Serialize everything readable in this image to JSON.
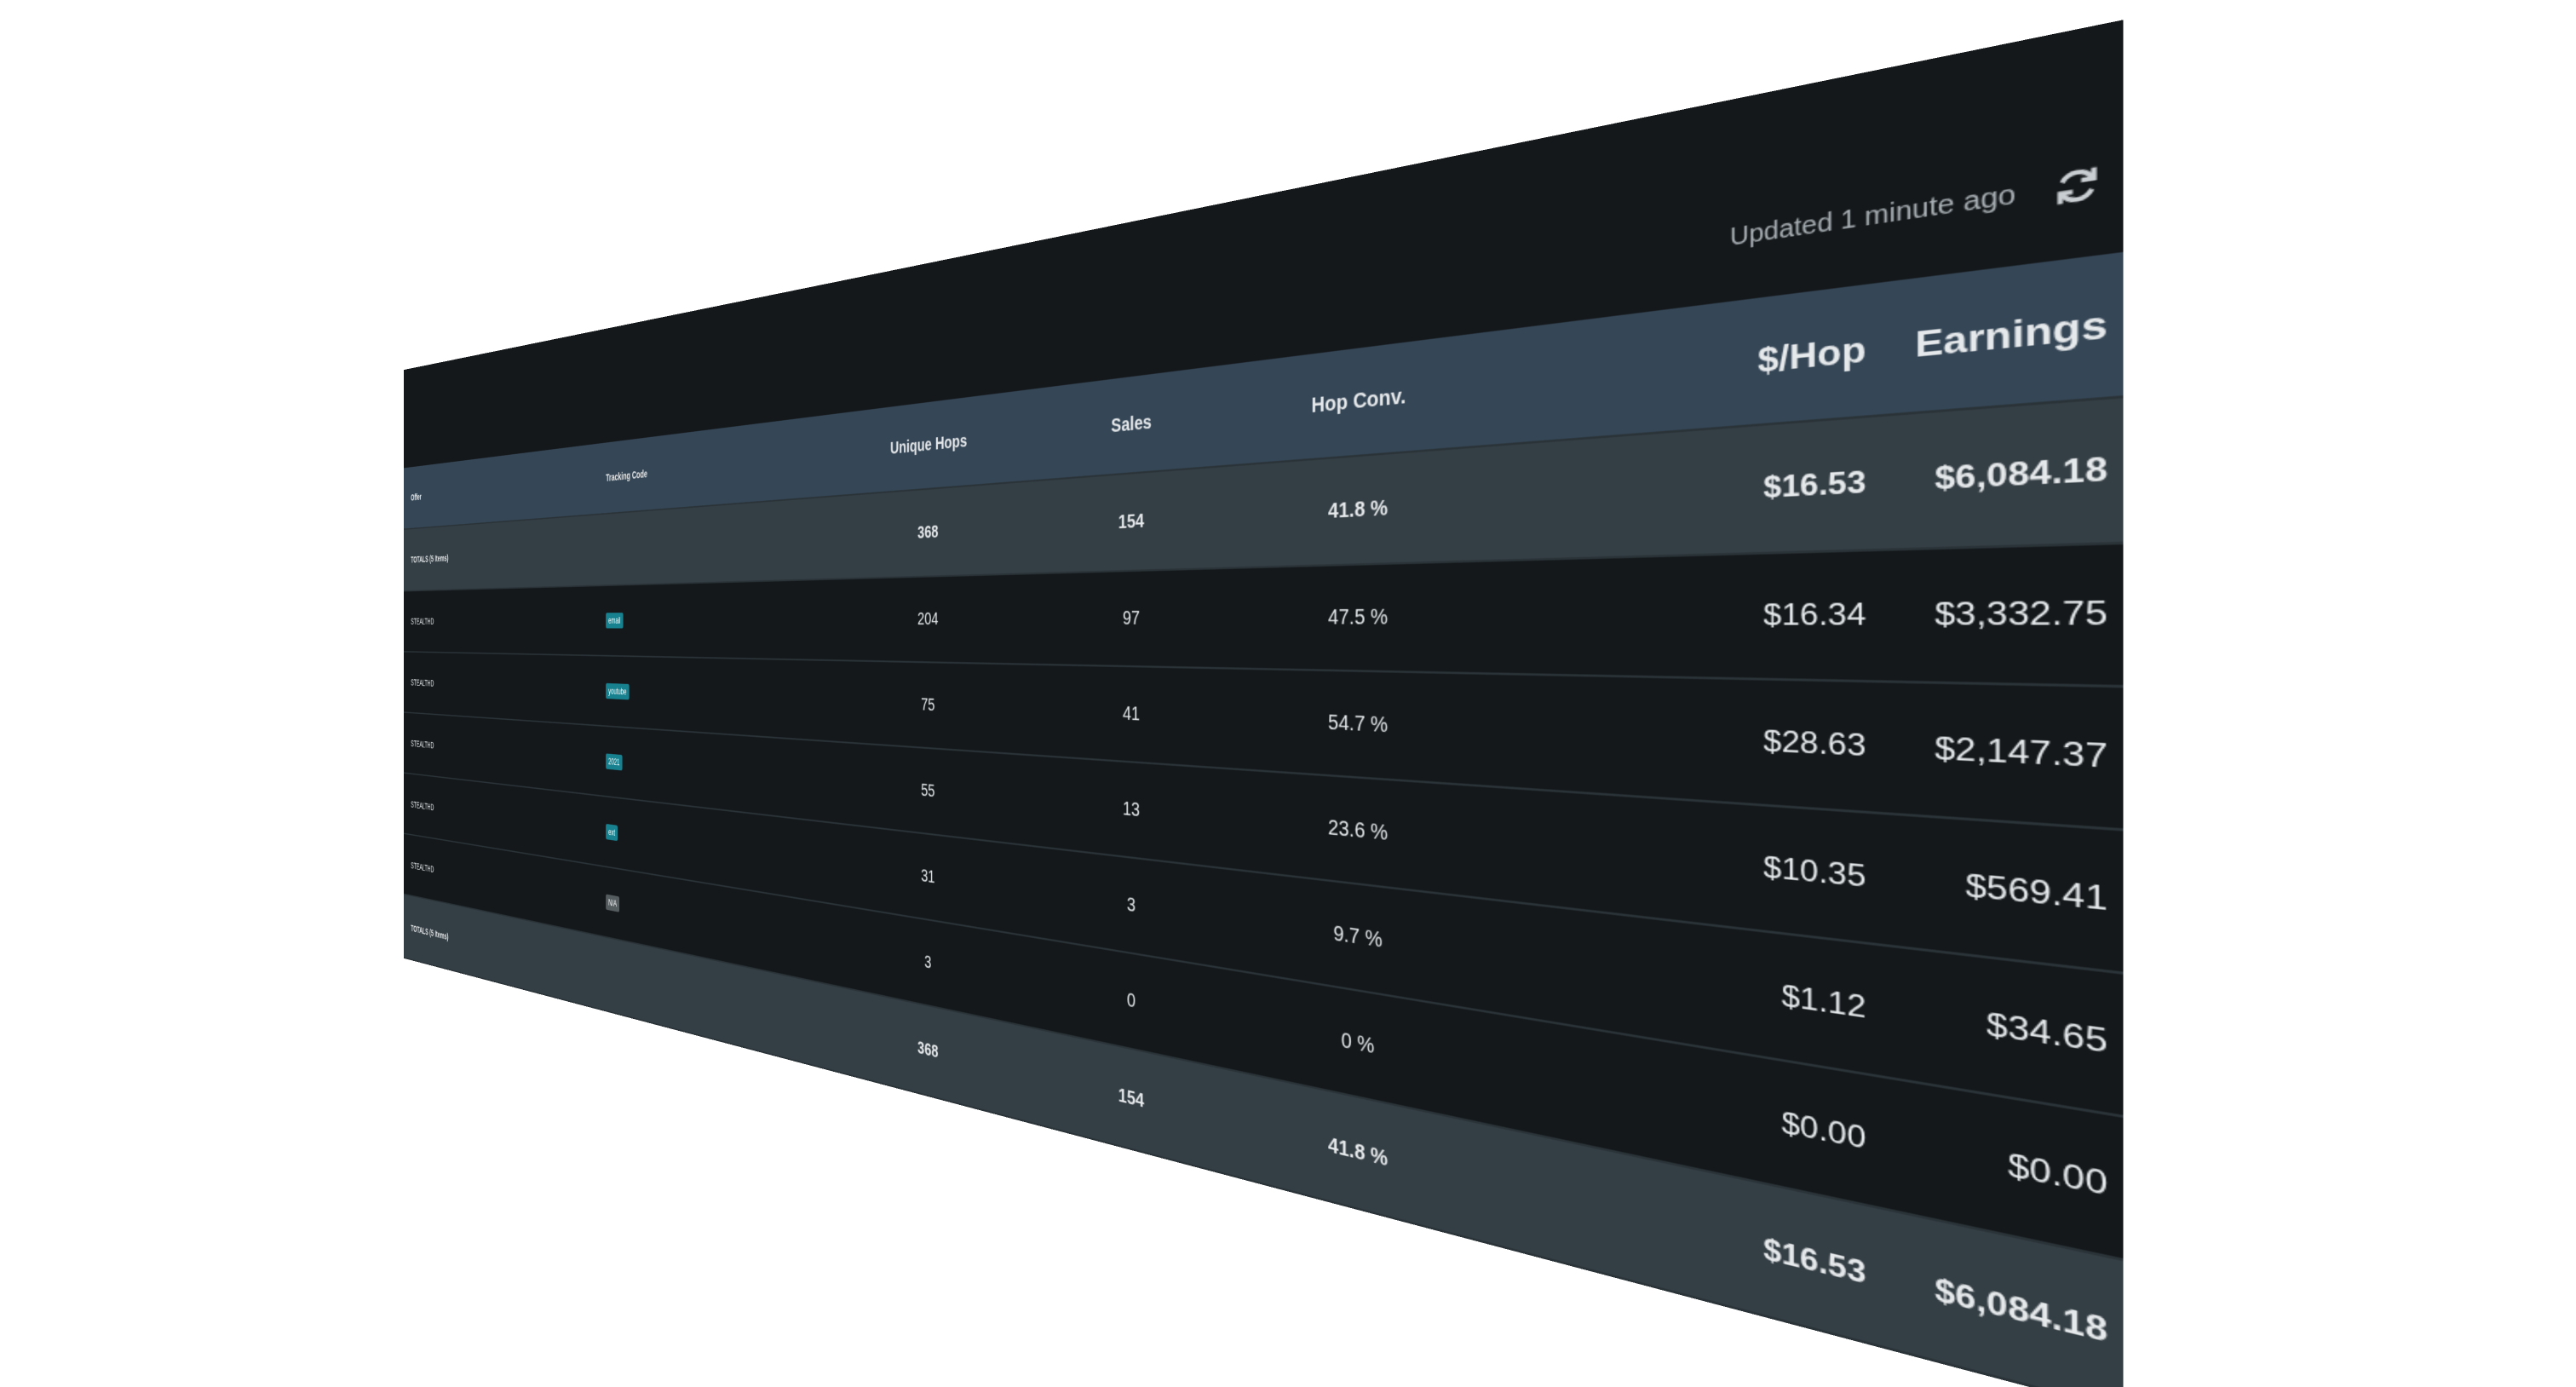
{
  "updated": "Updated 1 minute ago",
  "table": {
    "headers": {
      "offer": "Offer",
      "tracking_code": "Tracking Code",
      "unique_hops": "Unique Hops",
      "sales": "Sales",
      "hop_conv": "Hop Conv.",
      "per_hop": "$/Hop",
      "earnings": "Earnings"
    },
    "totals_top": {
      "offer": "TOTALS (5 Items)",
      "unique_hops": "368",
      "sales": "154",
      "hop_conv": "41.8 %",
      "per_hop": "$16.53",
      "earnings": "$6,084.18"
    },
    "rows": [
      {
        "offer": "STEALTHD",
        "tracking_code": "email",
        "unique_hops": "204",
        "sales": "97",
        "hop_conv": "47.5 %",
        "per_hop": "$16.34",
        "earnings": "$3,332.75"
      },
      {
        "offer": "STEALTHD",
        "tracking_code": "youtube",
        "unique_hops": "75",
        "sales": "41",
        "hop_conv": "54.7 %",
        "per_hop": "$28.63",
        "earnings": "$2,147.37"
      },
      {
        "offer": "STEALTHD",
        "tracking_code": "2021",
        "unique_hops": "55",
        "sales": "13",
        "hop_conv": "23.6 %",
        "per_hop": "$10.35",
        "earnings": "$569.41"
      },
      {
        "offer": "STEALTHD",
        "tracking_code": "ext",
        "unique_hops": "31",
        "sales": "3",
        "hop_conv": "9.7 %",
        "per_hop": "$1.12",
        "earnings": "$34.65"
      },
      {
        "offer": "STEALTHD",
        "tracking_code": "N/A",
        "unique_hops": "3",
        "sales": "0",
        "hop_conv": "0 %",
        "per_hop": "$0.00",
        "earnings": "$0.00"
      }
    ],
    "totals_bottom": {
      "offer": "TOTALS (5 Items)",
      "unique_hops": "368",
      "sales": "154",
      "hop_conv": "41.8 %",
      "per_hop": "$16.53",
      "earnings": "$6,084.18"
    }
  }
}
